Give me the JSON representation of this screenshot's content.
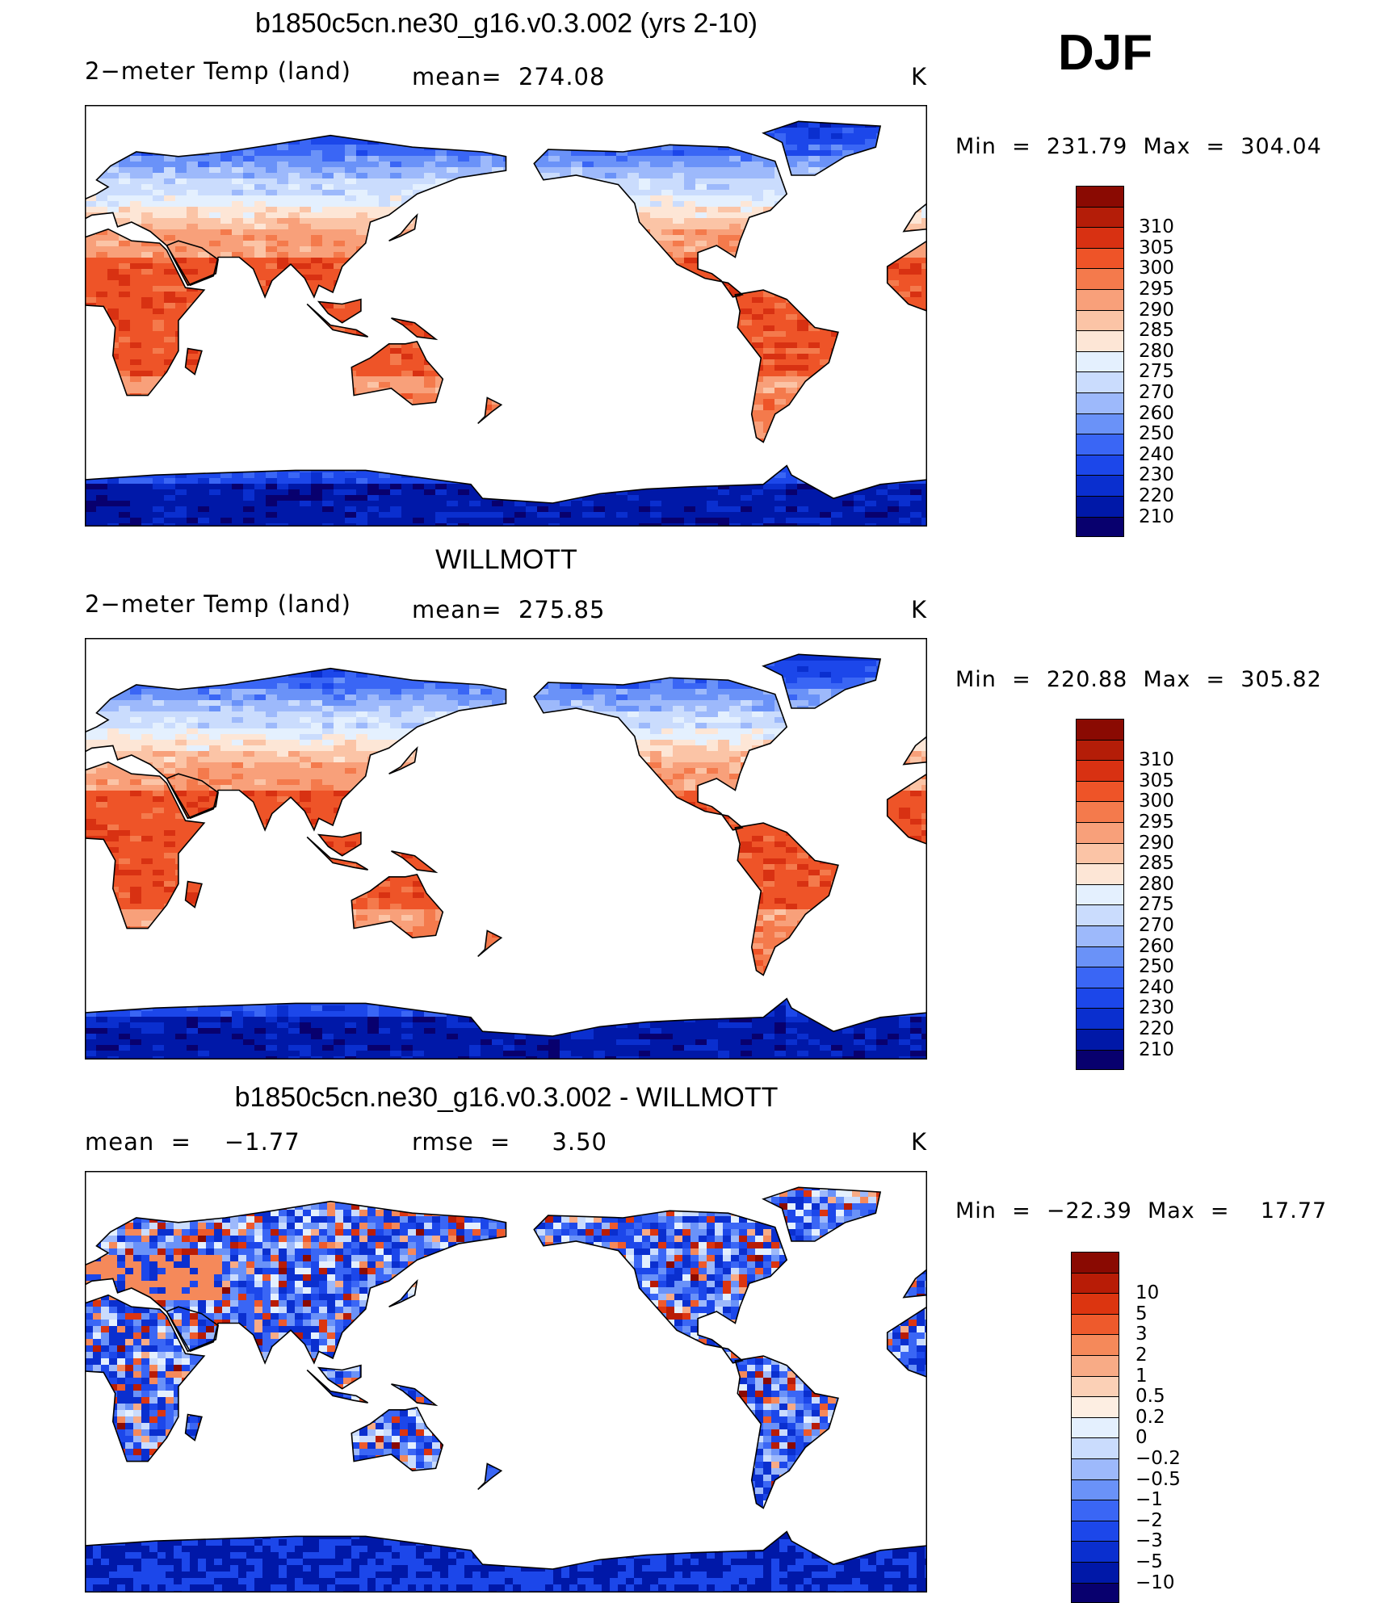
{
  "season": "DJF",
  "colors": {
    "land_levels_11": [
      "#08006e",
      "#0018a8",
      "#0a2fcf",
      "#1c47ea",
      "#3a66f5",
      "#6a92f8",
      "#9db9fb",
      "#cadcfd",
      "#e4f0fe",
      "#fde6d6",
      "#fbc4a6",
      "#f8a07a",
      "#f47a4c",
      "#ee5428",
      "#d83112",
      "#b41d08",
      "#8a0a02"
    ],
    "diff_levels": [
      "#08006e",
      "#0018a8",
      "#0a2fcf",
      "#1c47ea",
      "#3a66f5",
      "#6a92f8",
      "#9db9fb",
      "#cadcfd",
      "#e4f0fe",
      "#fdeee2",
      "#fbd0b6",
      "#f8ab86",
      "#f5895a",
      "#ee5a2c",
      "#dc3510",
      "#b81c06",
      "#8a0a02"
    ],
    "ocean": "#ffffff",
    "coast": "#000000"
  },
  "panels": [
    {
      "title": "b1850c5cn.ne30_g16.v0.3.002 (yrs 2-10)",
      "left_label": "2−meter Temp (land)",
      "center_label": "mean=  274.08",
      "units": "K",
      "min_max": "Min  =  231.79  Max  =  304.04",
      "colorbar_labels": [
        "310",
        "305",
        "300",
        "295",
        "290",
        "285",
        "280",
        "275",
        "270",
        "260",
        "250",
        "240",
        "230",
        "220",
        "210"
      ],
      "kind": "model"
    },
    {
      "title": "WILLMOTT",
      "left_label": "2−meter Temp (land)",
      "center_label": "mean=  275.85",
      "units": "K",
      "min_max": "Min  =  220.88  Max  =  305.82",
      "colorbar_labels": [
        "310",
        "305",
        "300",
        "295",
        "290",
        "285",
        "280",
        "275",
        "270",
        "260",
        "250",
        "240",
        "230",
        "220",
        "210"
      ],
      "kind": "obs"
    },
    {
      "title": "b1850c5cn.ne30_g16.v0.3.002 - WILLMOTT",
      "left_label": "mean  =    −1.77",
      "center_label": "rmse  =     3.50",
      "units": "K",
      "min_max": "Min  =  −22.39  Max  =    17.77",
      "colorbar_labels": [
        "10",
        "5",
        "3",
        "2",
        "1",
        "0.5",
        "0.2",
        "0",
        "−0.2",
        "−0.5",
        "−1",
        "−2",
        "−3",
        "−5",
        "−10"
      ],
      "kind": "diff"
    }
  ]
}
